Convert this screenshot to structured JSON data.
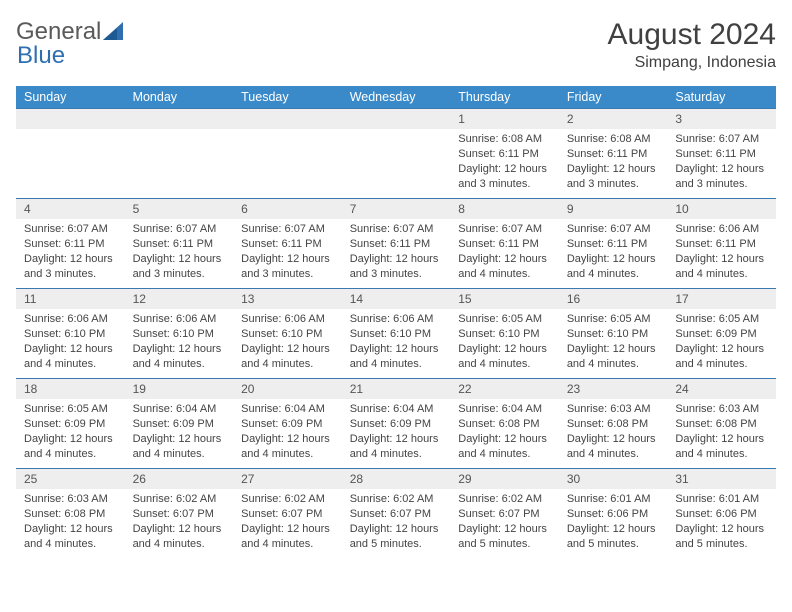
{
  "logo": {
    "text1": "General",
    "text2": "Blue"
  },
  "title": "August 2024",
  "location": "Simpang, Indonesia",
  "colors": {
    "header_bg": "#3a8ac9",
    "header_text": "#ffffff",
    "row_divider": "#3a78b0",
    "daynum_bg": "#eeeeee",
    "body_text": "#444444",
    "logo_gray": "#5a5a5a",
    "logo_blue": "#2f6fb0",
    "page_bg": "#ffffff"
  },
  "typography": {
    "title_fontsize": 30,
    "location_fontsize": 16,
    "header_fontsize": 12.5,
    "daynum_fontsize": 12,
    "body_fontsize": 11
  },
  "days_of_week": [
    "Sunday",
    "Monday",
    "Tuesday",
    "Wednesday",
    "Thursday",
    "Friday",
    "Saturday"
  ],
  "weeks": [
    [
      null,
      null,
      null,
      null,
      {
        "n": "1",
        "sunrise": "Sunrise: 6:08 AM",
        "sunset": "Sunset: 6:11 PM",
        "daylight": "Daylight: 12 hours and 3 minutes."
      },
      {
        "n": "2",
        "sunrise": "Sunrise: 6:08 AM",
        "sunset": "Sunset: 6:11 PM",
        "daylight": "Daylight: 12 hours and 3 minutes."
      },
      {
        "n": "3",
        "sunrise": "Sunrise: 6:07 AM",
        "sunset": "Sunset: 6:11 PM",
        "daylight": "Daylight: 12 hours and 3 minutes."
      }
    ],
    [
      {
        "n": "4",
        "sunrise": "Sunrise: 6:07 AM",
        "sunset": "Sunset: 6:11 PM",
        "daylight": "Daylight: 12 hours and 3 minutes."
      },
      {
        "n": "5",
        "sunrise": "Sunrise: 6:07 AM",
        "sunset": "Sunset: 6:11 PM",
        "daylight": "Daylight: 12 hours and 3 minutes."
      },
      {
        "n": "6",
        "sunrise": "Sunrise: 6:07 AM",
        "sunset": "Sunset: 6:11 PM",
        "daylight": "Daylight: 12 hours and 3 minutes."
      },
      {
        "n": "7",
        "sunrise": "Sunrise: 6:07 AM",
        "sunset": "Sunset: 6:11 PM",
        "daylight": "Daylight: 12 hours and 3 minutes."
      },
      {
        "n": "8",
        "sunrise": "Sunrise: 6:07 AM",
        "sunset": "Sunset: 6:11 PM",
        "daylight": "Daylight: 12 hours and 4 minutes."
      },
      {
        "n": "9",
        "sunrise": "Sunrise: 6:07 AM",
        "sunset": "Sunset: 6:11 PM",
        "daylight": "Daylight: 12 hours and 4 minutes."
      },
      {
        "n": "10",
        "sunrise": "Sunrise: 6:06 AM",
        "sunset": "Sunset: 6:11 PM",
        "daylight": "Daylight: 12 hours and 4 minutes."
      }
    ],
    [
      {
        "n": "11",
        "sunrise": "Sunrise: 6:06 AM",
        "sunset": "Sunset: 6:10 PM",
        "daylight": "Daylight: 12 hours and 4 minutes."
      },
      {
        "n": "12",
        "sunrise": "Sunrise: 6:06 AM",
        "sunset": "Sunset: 6:10 PM",
        "daylight": "Daylight: 12 hours and 4 minutes."
      },
      {
        "n": "13",
        "sunrise": "Sunrise: 6:06 AM",
        "sunset": "Sunset: 6:10 PM",
        "daylight": "Daylight: 12 hours and 4 minutes."
      },
      {
        "n": "14",
        "sunrise": "Sunrise: 6:06 AM",
        "sunset": "Sunset: 6:10 PM",
        "daylight": "Daylight: 12 hours and 4 minutes."
      },
      {
        "n": "15",
        "sunrise": "Sunrise: 6:05 AM",
        "sunset": "Sunset: 6:10 PM",
        "daylight": "Daylight: 12 hours and 4 minutes."
      },
      {
        "n": "16",
        "sunrise": "Sunrise: 6:05 AM",
        "sunset": "Sunset: 6:10 PM",
        "daylight": "Daylight: 12 hours and 4 minutes."
      },
      {
        "n": "17",
        "sunrise": "Sunrise: 6:05 AM",
        "sunset": "Sunset: 6:09 PM",
        "daylight": "Daylight: 12 hours and 4 minutes."
      }
    ],
    [
      {
        "n": "18",
        "sunrise": "Sunrise: 6:05 AM",
        "sunset": "Sunset: 6:09 PM",
        "daylight": "Daylight: 12 hours and 4 minutes."
      },
      {
        "n": "19",
        "sunrise": "Sunrise: 6:04 AM",
        "sunset": "Sunset: 6:09 PM",
        "daylight": "Daylight: 12 hours and 4 minutes."
      },
      {
        "n": "20",
        "sunrise": "Sunrise: 6:04 AM",
        "sunset": "Sunset: 6:09 PM",
        "daylight": "Daylight: 12 hours and 4 minutes."
      },
      {
        "n": "21",
        "sunrise": "Sunrise: 6:04 AM",
        "sunset": "Sunset: 6:09 PM",
        "daylight": "Daylight: 12 hours and 4 minutes."
      },
      {
        "n": "22",
        "sunrise": "Sunrise: 6:04 AM",
        "sunset": "Sunset: 6:08 PM",
        "daylight": "Daylight: 12 hours and 4 minutes."
      },
      {
        "n": "23",
        "sunrise": "Sunrise: 6:03 AM",
        "sunset": "Sunset: 6:08 PM",
        "daylight": "Daylight: 12 hours and 4 minutes."
      },
      {
        "n": "24",
        "sunrise": "Sunrise: 6:03 AM",
        "sunset": "Sunset: 6:08 PM",
        "daylight": "Daylight: 12 hours and 4 minutes."
      }
    ],
    [
      {
        "n": "25",
        "sunrise": "Sunrise: 6:03 AM",
        "sunset": "Sunset: 6:08 PM",
        "daylight": "Daylight: 12 hours and 4 minutes."
      },
      {
        "n": "26",
        "sunrise": "Sunrise: 6:02 AM",
        "sunset": "Sunset: 6:07 PM",
        "daylight": "Daylight: 12 hours and 4 minutes."
      },
      {
        "n": "27",
        "sunrise": "Sunrise: 6:02 AM",
        "sunset": "Sunset: 6:07 PM",
        "daylight": "Daylight: 12 hours and 4 minutes."
      },
      {
        "n": "28",
        "sunrise": "Sunrise: 6:02 AM",
        "sunset": "Sunset: 6:07 PM",
        "daylight": "Daylight: 12 hours and 5 minutes."
      },
      {
        "n": "29",
        "sunrise": "Sunrise: 6:02 AM",
        "sunset": "Sunset: 6:07 PM",
        "daylight": "Daylight: 12 hours and 5 minutes."
      },
      {
        "n": "30",
        "sunrise": "Sunrise: 6:01 AM",
        "sunset": "Sunset: 6:06 PM",
        "daylight": "Daylight: 12 hours and 5 minutes."
      },
      {
        "n": "31",
        "sunrise": "Sunrise: 6:01 AM",
        "sunset": "Sunset: 6:06 PM",
        "daylight": "Daylight: 12 hours and 5 minutes."
      }
    ]
  ]
}
